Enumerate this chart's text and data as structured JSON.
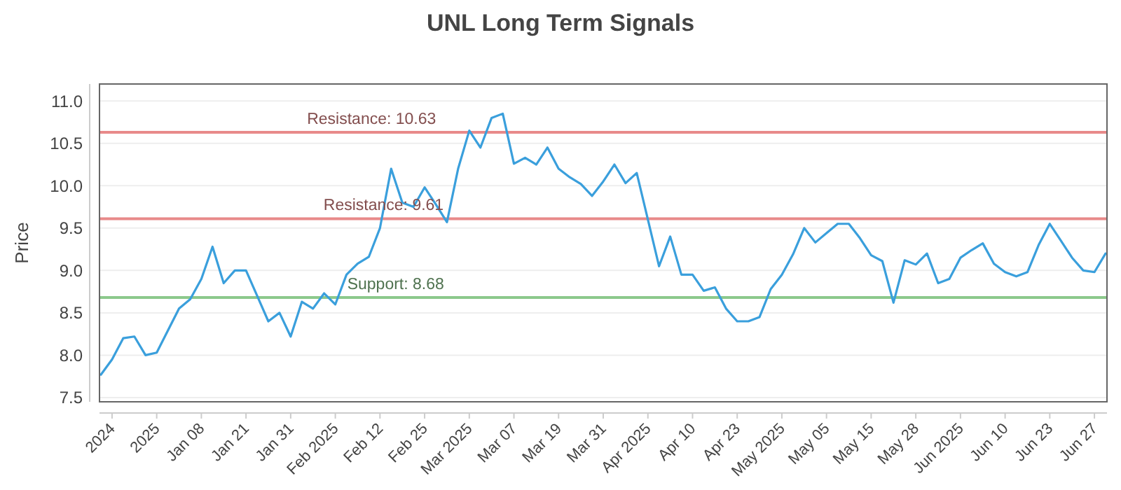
{
  "chart_data": {
    "type": "line",
    "title": "UNL Long Term Signals",
    "ylabel": "Price",
    "categories": [
      null,
      "2024",
      null,
      null,
      null,
      "2025",
      null,
      null,
      null,
      "Jan 08",
      null,
      null,
      null,
      "Jan 21",
      null,
      null,
      null,
      "Jan 31",
      null,
      null,
      null,
      "Feb 2025",
      null,
      null,
      null,
      "Feb 12",
      null,
      null,
      null,
      "Feb 25",
      null,
      null,
      null,
      "Mar 2025",
      null,
      null,
      null,
      "Mar 07",
      null,
      null,
      null,
      "Mar 19",
      null,
      null,
      null,
      "Mar 31",
      null,
      null,
      null,
      "Apr 2025",
      null,
      null,
      null,
      "Apr 10",
      null,
      null,
      null,
      "Apr 23",
      null,
      null,
      null,
      "May 2025",
      null,
      null,
      null,
      "May 05",
      null,
      null,
      null,
      "May 15",
      null,
      null,
      null,
      "May 28",
      null,
      null,
      null,
      "Jun 2025",
      null,
      null,
      null,
      "Jun 10",
      null,
      null,
      null,
      "Jun 23",
      null,
      null,
      null,
      "Jun 27",
      null
    ],
    "series": [
      {
        "color": "#3a9fdc",
        "values": [
          7.77,
          7.95,
          8.2,
          8.22,
          8.0,
          8.03,
          8.29,
          8.55,
          8.66,
          8.9,
          9.28,
          8.85,
          9.0,
          9.0,
          8.7,
          8.4,
          8.5,
          8.22,
          8.63,
          8.55,
          8.73,
          8.6,
          8.95,
          9.08,
          9.16,
          9.5,
          10.2,
          9.8,
          9.75,
          9.98,
          9.78,
          9.57,
          10.2,
          10.65,
          10.45,
          10.8,
          10.85,
          10.26,
          10.33,
          10.25,
          10.45,
          10.2,
          10.1,
          10.02,
          9.88,
          10.05,
          10.25,
          10.03,
          10.15,
          9.6,
          9.05,
          9.4,
          8.95,
          8.95,
          8.76,
          8.8,
          8.55,
          8.4,
          8.4,
          8.45,
          8.78,
          8.95,
          9.19,
          9.5,
          9.33,
          9.44,
          9.55,
          9.55,
          9.38,
          9.18,
          9.11,
          8.62,
          9.12,
          9.07,
          9.2,
          8.85,
          8.9,
          9.15,
          9.24,
          9.32,
          9.08,
          8.98,
          8.93,
          8.98,
          9.3,
          9.55,
          9.35,
          9.15,
          9.0,
          8.98,
          9.2
        ]
      }
    ],
    "ylim": [
      7.45,
      11.2
    ],
    "yticks": [
      {
        "value": 7.5,
        "label": "7.5"
      },
      {
        "value": 8,
        "label": "8.0"
      },
      {
        "value": 8.5,
        "label": "8.5"
      },
      {
        "value": 9,
        "label": "9.0"
      },
      {
        "value": 9.5,
        "label": "9.5"
      },
      {
        "value": 10,
        "label": "10.0"
      },
      {
        "value": 10.5,
        "label": "10.5"
      },
      {
        "value": 11,
        "label": "11.0"
      }
    ],
    "grid": "y",
    "marker": "none",
    "line_style": "solid",
    "ref_lines": [
      {
        "axis": "y",
        "value": 10.63,
        "label": "Resistance: 10.63",
        "color": "#e88a8a"
      },
      {
        "axis": "y",
        "value": 9.61,
        "label": "Resistance: 9.61",
        "color": "#e88a8a"
      },
      {
        "axis": "y",
        "value": 8.68,
        "label": "Support: 8.68",
        "color": "#8cc98c"
      }
    ]
  }
}
